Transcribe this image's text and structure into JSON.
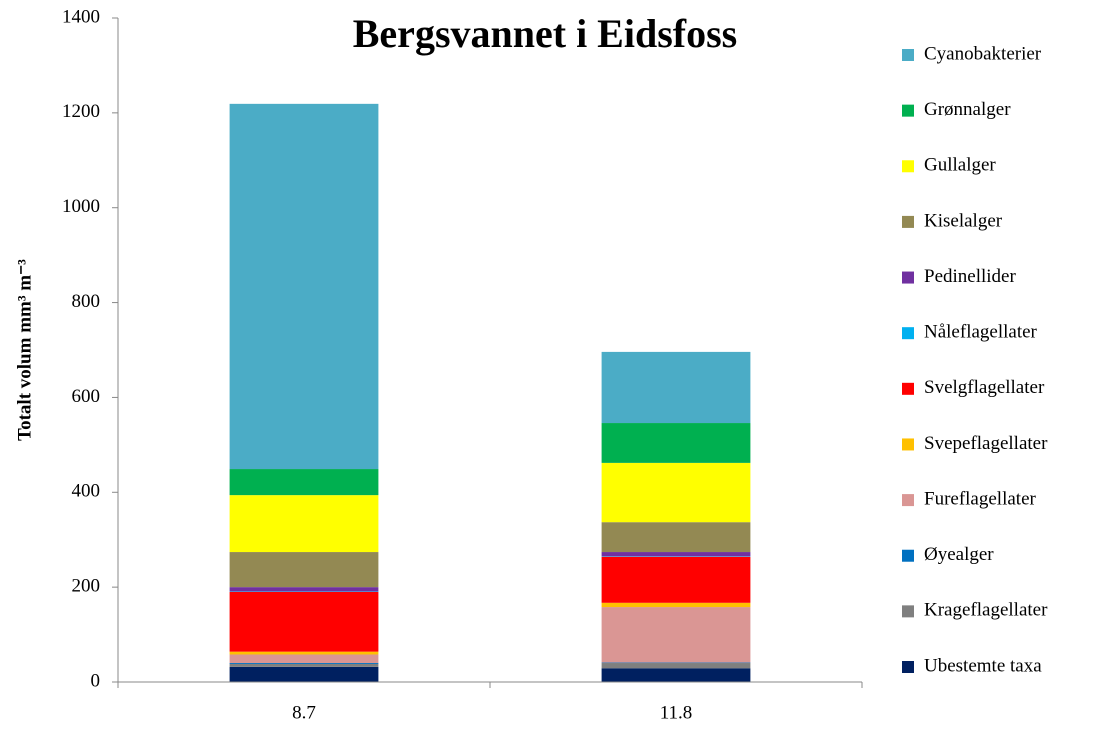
{
  "chart_data": {
    "type": "stacked_bar",
    "title": "Bergsvannet i Eidsfoss",
    "y_label": "Totalt volum mm³ m⁻³",
    "categories": [
      "8.7",
      "11.8"
    ],
    "series": [
      {
        "name": "Ubestemte taxa",
        "color": "#002060",
        "values": [
          32,
          29
        ]
      },
      {
        "name": "Krageflagellater",
        "color": "#7f7f7f",
        "values": [
          6,
          11
        ]
      },
      {
        "name": "Øyealger",
        "color": "#0070c0",
        "values": [
          2,
          1
        ]
      },
      {
        "name": "Fureflagellater",
        "color": "#da9694",
        "values": [
          18,
          117
        ]
      },
      {
        "name": "Svepeflagellater",
        "color": "#ffc000",
        "values": [
          6,
          9
        ]
      },
      {
        "name": "Svelgflagellater",
        "color": "#ff0000",
        "values": [
          126,
          97
        ]
      },
      {
        "name": "Nåleflagellater",
        "color": "#00b0f0",
        "values": [
          1,
          1
        ]
      },
      {
        "name": "Pedinellider",
        "color": "#7030a0",
        "values": [
          9,
          9
        ]
      },
      {
        "name": "Kiselalger",
        "color": "#938953",
        "values": [
          74,
          63
        ]
      },
      {
        "name": "Gullalger",
        "color": "#ffff00",
        "values": [
          120,
          125
        ]
      },
      {
        "name": "Grønnalger",
        "color": "#00b050",
        "values": [
          55,
          84
        ]
      },
      {
        "name": "Cyanobakterier",
        "color": "#4bacc6",
        "values": [
          770,
          150
        ]
      }
    ],
    "ylim": [
      0,
      1400
    ],
    "yticks": [
      0,
      200,
      400,
      600,
      800,
      1000,
      1200,
      1400
    ],
    "grid": false,
    "legend": "right"
  }
}
